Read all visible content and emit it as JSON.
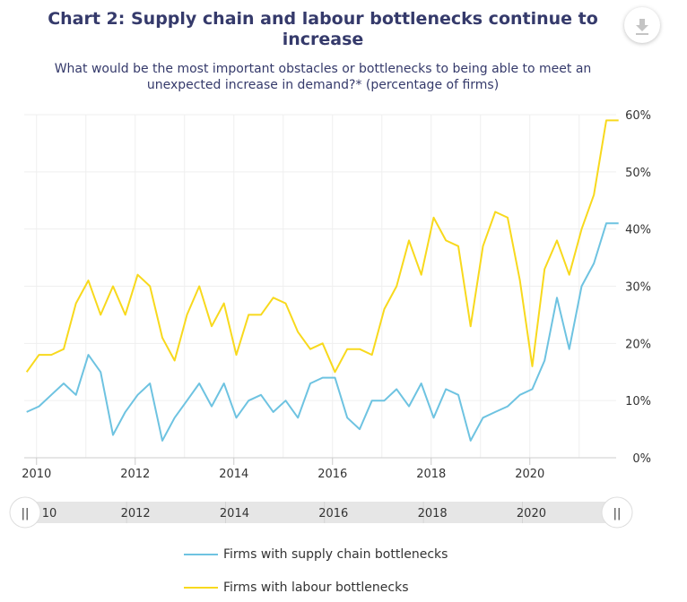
{
  "title": "Chart 2: Supply chain and labour bottlenecks continue to increase",
  "subtitle": "What would be the most important obstacles or bottlenecks to being able to meet an unexpected increase in demand?* (percentage of firms)",
  "icons": {
    "download": "download-icon"
  },
  "colors": {
    "supply": "#6ec3e1",
    "labour": "#f8d91d"
  },
  "navigator": {
    "labels": [
      "10",
      "2012",
      "2014",
      "2016",
      "2018",
      "2020"
    ],
    "handle_glyph": "||"
  },
  "chart_data": {
    "type": "line",
    "title": "Chart 2: Supply chain and labour bottlenecks continue to increase",
    "subtitle": "What would be the most important obstacles or bottlenecks to being able to meet an unexpected increase in demand?* (percentage of firms)",
    "xlim": [
      2009.75,
      2021.75
    ],
    "ylim": [
      0,
      60
    ],
    "y_ticks": [
      0,
      10,
      20,
      30,
      40,
      50,
      60
    ],
    "y_tick_labels": [
      "0%",
      "10%",
      "20%",
      "30%",
      "40%",
      "50%",
      "60%"
    ],
    "x_ticks": [
      2010,
      2012,
      2014,
      2016,
      2018,
      2020
    ],
    "x_tick_labels": [
      "2010",
      "2012",
      "2014",
      "2016",
      "2018",
      "2020"
    ],
    "legend_position": "bottom",
    "series": [
      {
        "name": "Firms with supply chain bottlenecks",
        "color": "#6ec3e1",
        "x": [
          2009.8,
          2010.05,
          2010.3,
          2010.55,
          2010.8,
          2011.05,
          2011.3,
          2011.55,
          2011.8,
          2012.05,
          2012.3,
          2012.55,
          2012.8,
          2013.05,
          2013.3,
          2013.55,
          2013.8,
          2014.05,
          2014.3,
          2014.55,
          2014.8,
          2015.05,
          2015.3,
          2015.55,
          2015.8,
          2016.05,
          2016.3,
          2016.55,
          2016.8,
          2017.05,
          2017.3,
          2017.55,
          2017.8,
          2018.05,
          2018.3,
          2018.55,
          2018.8,
          2019.05,
          2019.3,
          2019.55,
          2019.8,
          2020.05,
          2020.3,
          2020.55,
          2020.8,
          2021.05,
          2021.3,
          2021.55,
          2021.8
        ],
        "values": [
          8,
          9,
          11,
          13,
          11,
          18,
          15,
          4,
          8,
          11,
          13,
          3,
          7,
          10,
          13,
          9,
          13,
          7,
          10,
          11,
          8,
          10,
          7,
          13,
          14,
          14,
          7,
          5,
          10,
          10,
          12,
          9,
          13,
          7,
          12,
          11,
          3,
          7,
          8,
          9,
          11,
          12,
          17,
          28,
          19,
          30,
          34,
          41,
          41
        ]
      },
      {
        "name": "Firms with labour bottlenecks",
        "color": "#f8d91d",
        "x": [
          2009.8,
          2010.05,
          2010.3,
          2010.55,
          2010.8,
          2011.05,
          2011.3,
          2011.55,
          2011.8,
          2012.05,
          2012.3,
          2012.55,
          2012.8,
          2013.05,
          2013.3,
          2013.55,
          2013.8,
          2014.05,
          2014.3,
          2014.55,
          2014.8,
          2015.05,
          2015.3,
          2015.55,
          2015.8,
          2016.05,
          2016.3,
          2016.55,
          2016.8,
          2017.05,
          2017.3,
          2017.55,
          2017.8,
          2018.05,
          2018.3,
          2018.55,
          2018.8,
          2019.05,
          2019.3,
          2019.55,
          2019.8,
          2020.05,
          2020.3,
          2020.55,
          2020.8,
          2021.05,
          2021.3,
          2021.55,
          2021.8
        ],
        "values": [
          15,
          18,
          18,
          19,
          27,
          31,
          25,
          30,
          25,
          32,
          30,
          21,
          17,
          25,
          30,
          23,
          27,
          18,
          25,
          25,
          28,
          27,
          22,
          19,
          20,
          15,
          19,
          19,
          18,
          26,
          30,
          38,
          32,
          42,
          38,
          37,
          23,
          37,
          43,
          42,
          31,
          16,
          33,
          38,
          32,
          40,
          46,
          59,
          59
        ]
      }
    ]
  }
}
